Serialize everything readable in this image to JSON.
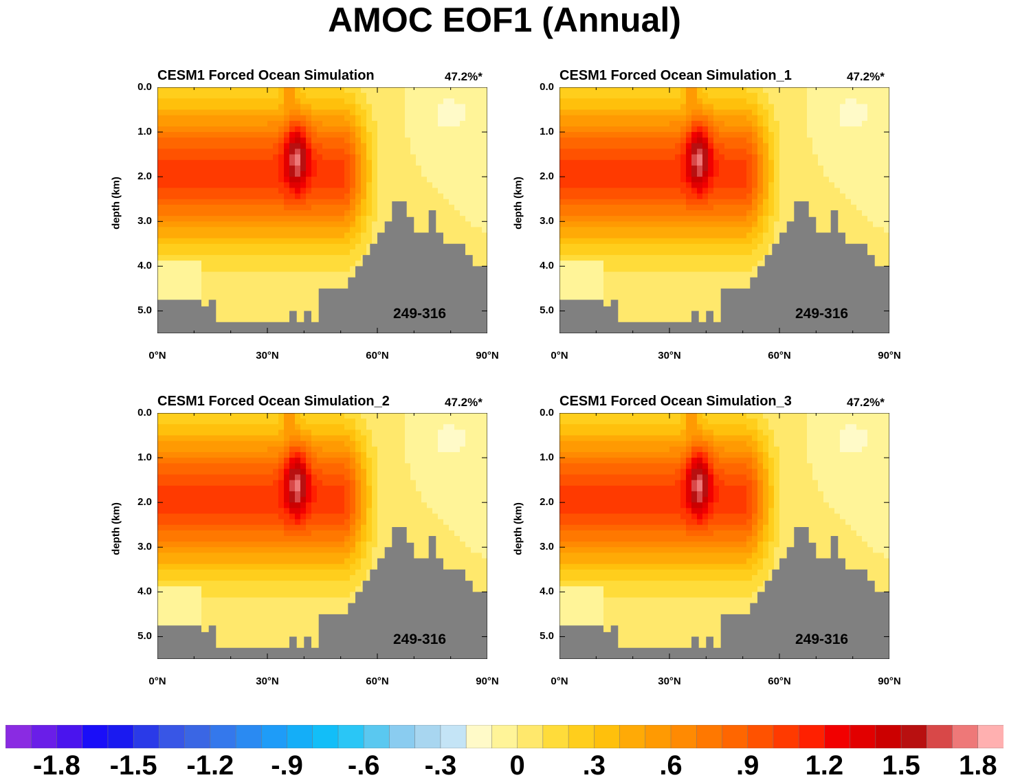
{
  "title": "AMOC EOF1 (Annual)",
  "panels": [
    {
      "title": "CESM1 Forced Ocean Simulation",
      "variance": "47.2%*",
      "years": "249-316"
    },
    {
      "title": "CESM1 Forced Ocean Simulation_1",
      "variance": "47.2%*",
      "years": "249-316"
    },
    {
      "title": "CESM1 Forced Ocean Simulation_2",
      "variance": "47.2%*",
      "years": "249-316"
    },
    {
      "title": "CESM1 Forced Ocean Simulation_3",
      "variance": "47.2%*",
      "years": "249-316"
    }
  ],
  "chart_data": {
    "type": "heatmap",
    "title": "AMOC EOF1 (Annual)",
    "xlabel": "",
    "ylabel": "depth (km)",
    "xlim": [
      0,
      90
    ],
    "ylim": [
      5.5,
      0.0
    ],
    "x_ticks": [
      "0°N",
      "30°N",
      "60°N",
      "90°N"
    ],
    "y_ticks": [
      "0.0",
      "1.0",
      "2.0",
      "3.0",
      "4.0",
      "5.0"
    ],
    "colorbar": {
      "tick_labels": [
        "-1.8",
        "-1.5",
        "-1.2",
        "-.9",
        "-.6",
        "-.3",
        "0",
        ".3",
        ".6",
        ".9",
        "1.2",
        "1.5",
        "1.8"
      ],
      "levels_min": -2.0,
      "levels_step": 0.1,
      "colors": [
        "#8a2be2",
        "#6a1ee8",
        "#4a14ee",
        "#1a0ef8",
        "#1a1af0",
        "#2a3ae8",
        "#3856e6",
        "#3a66e4",
        "#3478ec",
        "#2a8af2",
        "#1e9cf8",
        "#14aef8",
        "#12bef8",
        "#2ac6f6",
        "#5ac8f0",
        "#8accf0",
        "#a8d6f0",
        "#c4e4f6",
        "#fffac8",
        "#fff498",
        "#ffe86c",
        "#ffdc3a",
        "#ffce1c",
        "#ffc00c",
        "#ffaa06",
        "#ff9a02",
        "#ff8a02",
        "#ff7800",
        "#ff6600",
        "#ff5200",
        "#ff3a00",
        "#ff2000",
        "#f20000",
        "#e20000",
        "#cc0000",
        "#b81010",
        "#d84848",
        "#ee7878",
        "#ffb0b0"
      ]
    },
    "field_description": "EOF1 pattern of AMOC streamfunction vs latitude and depth; positive maximum ~1.5-1.7 near 35-40°N at 1-2 km depth",
    "series": [
      {
        "name": "CESM1 Forced Ocean Simulation",
        "explained_variance": 47.2
      },
      {
        "name": "CESM1 Forced Ocean Simulation_1",
        "explained_variance": 47.2
      },
      {
        "name": "CESM1 Forced Ocean Simulation_2",
        "explained_variance": 47.2
      },
      {
        "name": "CESM1 Forced Ocean Simulation_3",
        "explained_variance": 47.2
      }
    ],
    "bathymetry": {
      "lat": [
        0,
        2,
        4,
        6,
        8,
        10,
        12,
        14,
        16,
        18,
        20,
        22,
        24,
        26,
        28,
        30,
        32,
        34,
        36,
        38,
        40,
        42,
        44,
        46,
        48,
        50,
        52,
        54,
        56,
        58,
        60,
        62,
        64,
        66,
        68,
        70,
        72,
        74,
        76,
        78,
        80,
        82,
        84,
        86,
        88,
        90
      ],
      "depth_km": [
        4.75,
        4.75,
        4.75,
        4.75,
        4.75,
        4.75,
        4.9,
        4.75,
        5.25,
        5.25,
        5.25,
        5.25,
        5.25,
        5.25,
        5.25,
        5.25,
        5.25,
        5.25,
        5.0,
        5.25,
        5.0,
        5.25,
        4.5,
        4.5,
        4.5,
        4.5,
        4.25,
        4.0,
        3.75,
        3.5,
        3.25,
        3.0,
        2.55,
        2.55,
        2.9,
        3.25,
        3.25,
        2.75,
        3.25,
        3.5,
        3.5,
        3.5,
        3.75,
        4.0,
        4.0,
        4.0
      ]
    }
  }
}
